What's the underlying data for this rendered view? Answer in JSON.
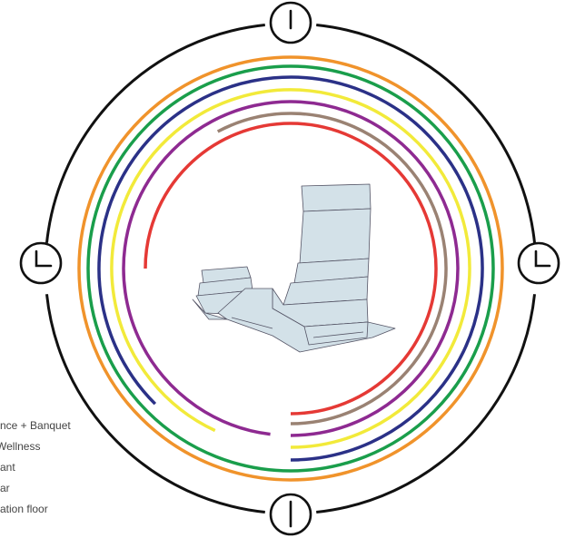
{
  "legend": [
    "nce + Banquet",
    "Wellness",
    "ant",
    "ar",
    "ation floor"
  ]
}
